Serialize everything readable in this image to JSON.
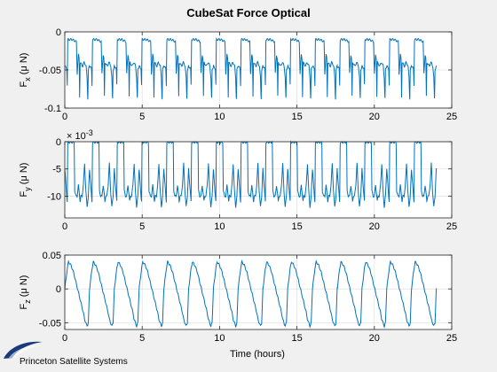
{
  "chart_data": {
    "type": "line",
    "title": "CubeSat Force Optical",
    "xlabel": "Time (hours)",
    "x_range": [
      0,
      25
    ],
    "x_ticks": [
      0,
      5,
      10,
      15,
      20,
      25
    ],
    "grid": true,
    "line_color": "#0072bd",
    "panels": [
      {
        "id": "fx",
        "ylabel_main": "F",
        "ylabel_sub": "x",
        "ylabel_unit": " (μ N)",
        "ylim": [
          -0.1,
          0
        ],
        "y_ticks": [
          -0.1,
          -0.05,
          0
        ],
        "y_tick_labels": [
          "-0.1",
          "-0.05",
          "0"
        ],
        "exponent_label": "",
        "period_hours": 1.6,
        "profile_t": [
          0,
          0.08,
          0.1,
          0.12,
          0.3,
          0.42,
          0.47,
          0.5,
          0.55,
          0.58,
          0.6,
          0.62,
          0.72,
          0.78,
          0.82,
          0.86,
          0.9,
          0.93,
          0.95,
          1.0
        ],
        "profile_v": [
          -0.045,
          -0.048,
          -0.07,
          -0.01,
          -0.01,
          -0.012,
          -0.013,
          -0.055,
          -0.03,
          -0.035,
          -0.085,
          -0.04,
          -0.045,
          -0.04,
          -0.042,
          -0.045,
          -0.06,
          -0.09,
          -0.05,
          -0.045
        ]
      },
      {
        "id": "fy",
        "ylabel_main": "F",
        "ylabel_sub": "y",
        "ylabel_unit": " (μ N)",
        "ylim": [
          -14,
          0
        ],
        "y_ticks": [
          -10,
          -5,
          0
        ],
        "y_tick_labels": [
          "-10",
          "-5",
          "0"
        ],
        "exponent_label": "× 10",
        "exponent_power": "-3",
        "period_hours": 1.6,
        "profile_t": [
          0,
          0.08,
          0.1,
          0.12,
          0.3,
          0.38,
          0.4,
          0.45,
          0.5,
          0.55,
          0.6,
          0.62,
          0.65,
          0.7,
          0.75,
          0.8,
          0.85,
          0.9,
          0.95,
          1.0
        ],
        "profile_v": [
          -5,
          -10,
          -11,
          -0.1,
          -0.1,
          -0.1,
          -9,
          -10,
          -10,
          -8,
          -10,
          -11,
          -10,
          -10,
          -8,
          -4,
          -9,
          -12,
          -10,
          -5
        ]
      },
      {
        "id": "fz",
        "ylabel_main": "F",
        "ylabel_sub": "z",
        "ylabel_unit": " (μ N)",
        "ylim": [
          -0.06,
          0.05
        ],
        "y_ticks": [
          -0.05,
          0,
          0.05
        ],
        "y_tick_labels": [
          "-0.05",
          "0",
          "0.05"
        ],
        "exponent_label": "",
        "period_hours": 1.6,
        "profile_t": [
          0,
          0.1,
          0.15,
          0.25,
          0.35,
          0.45,
          0.55,
          0.65,
          0.75,
          0.8,
          0.85,
          0.9,
          0.95,
          0.98,
          1.0
        ],
        "profile_v": [
          0.0,
          0.03,
          0.04,
          0.035,
          0.025,
          0.01,
          -0.005,
          -0.02,
          -0.035,
          -0.045,
          -0.05,
          -0.055,
          -0.05,
          -0.02,
          0.0
        ]
      }
    ],
    "x_end": 24
  },
  "logo": {
    "text": "Princeton Satellite Systems"
  }
}
